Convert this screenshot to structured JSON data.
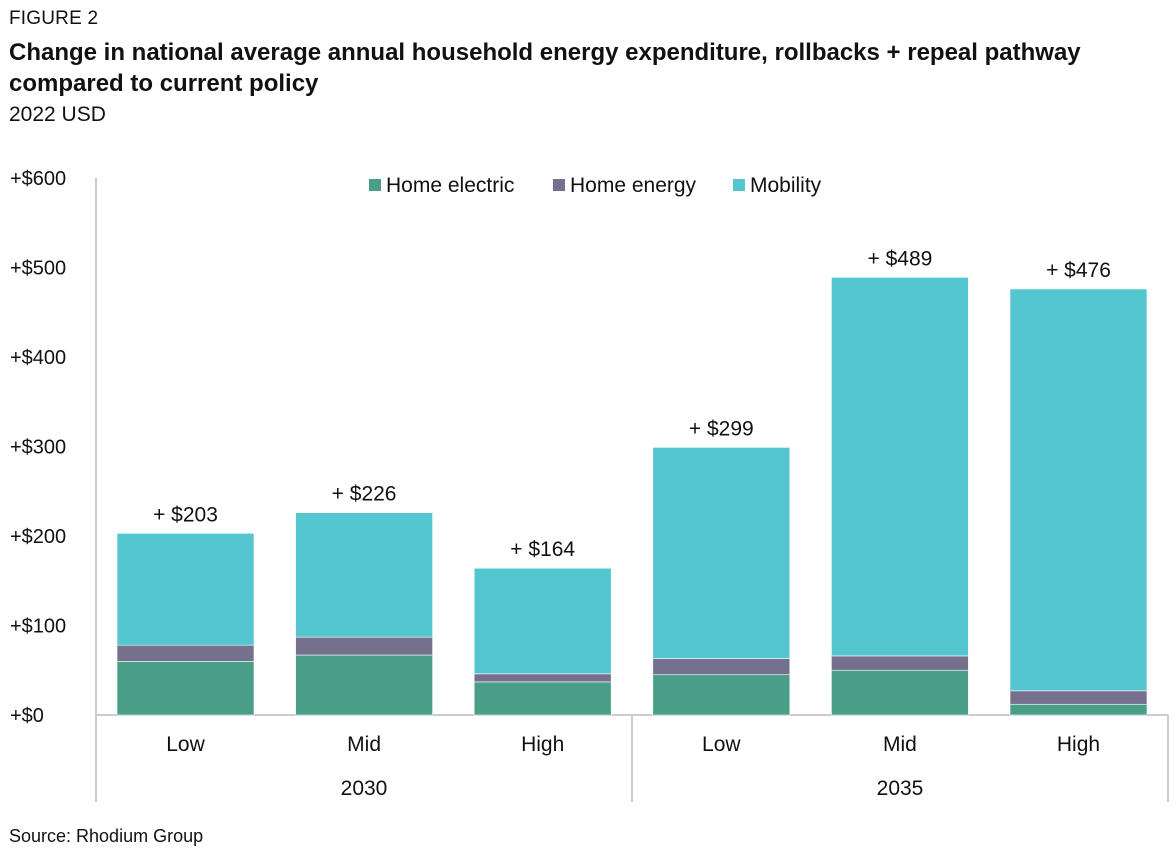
{
  "figure_label": "FIGURE 2",
  "title": "Change in national average annual household energy expenditure, rollbacks + repeal pathway compared to current policy",
  "subtitle": "2022 USD",
  "source": "Source: Rhodium Group",
  "colors": {
    "home_electric": "#4a9e88",
    "home_energy": "#76708f",
    "mobility": "#54c6d0",
    "axis": "#cccccc"
  },
  "chart_data": {
    "type": "bar",
    "stacked": true,
    "ylim": [
      0,
      600
    ],
    "yticks": [
      0,
      100,
      200,
      300,
      400,
      500,
      600
    ],
    "ytick_labels": [
      "+$0",
      "+$100",
      "+$200",
      "+$300",
      "+$400",
      "+$500",
      "+$600"
    ],
    "legend_position": "top-center",
    "groups": [
      {
        "label": "2030",
        "categories": [
          "Low",
          "Mid",
          "High"
        ]
      },
      {
        "label": "2035",
        "categories": [
          "Low",
          "Mid",
          "High"
        ]
      }
    ],
    "categories": [
      "Low",
      "Mid",
      "High",
      "Low",
      "Mid",
      "High"
    ],
    "series": [
      {
        "name": "Home electric",
        "color": "#4a9e88",
        "values": [
          60,
          67,
          37,
          45,
          50,
          12
        ]
      },
      {
        "name": "Home energy",
        "color": "#76708f",
        "values": [
          18,
          20,
          9,
          18,
          16,
          15
        ]
      },
      {
        "name": "Mobility",
        "color": "#54c6d0",
        "values": [
          125,
          139,
          118,
          236,
          423,
          449
        ]
      }
    ],
    "totals": [
      203,
      226,
      164,
      299,
      489,
      476
    ],
    "total_labels": [
      "+ $203",
      "+ $226",
      "+ $164",
      "+ $299",
      "+ $489",
      "+ $476"
    ]
  }
}
